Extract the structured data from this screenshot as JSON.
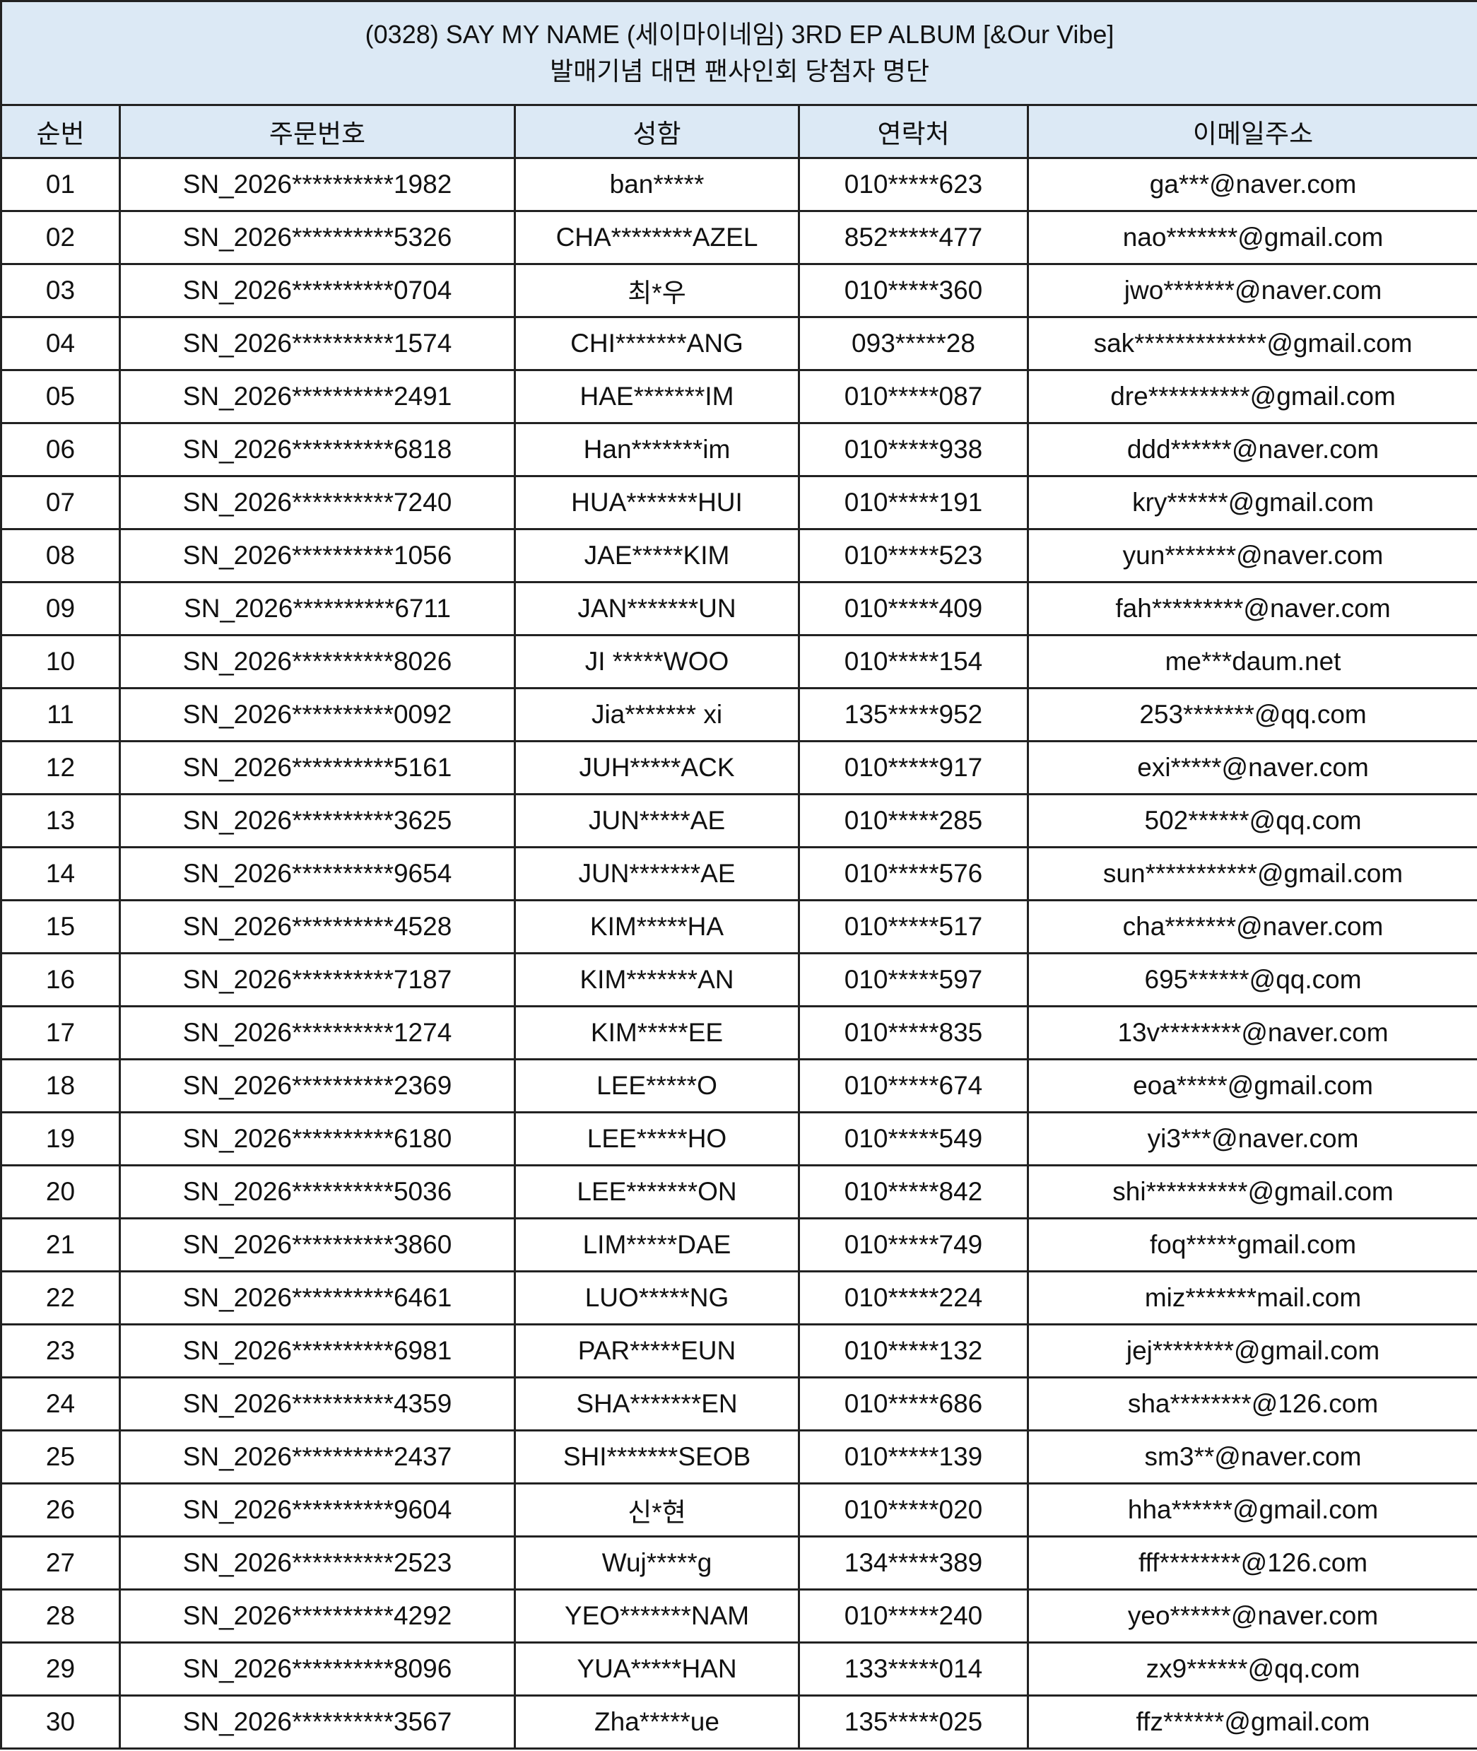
{
  "title": {
    "line1": "(0328) SAY MY NAME (세이마이네임) 3RD EP ALBUM [&Our Vibe]",
    "line2": "발매기념 대면 팬사인회 당첨자 명단"
  },
  "columns": [
    "순번",
    "주문번호",
    "성함",
    "연락처",
    "이메일주소"
  ],
  "colors": {
    "header_bg": "#dce9f5",
    "border": "#222222"
  },
  "rows": [
    [
      "01",
      "SN_2026**********1982",
      "ban*****",
      "010*****623",
      "ga***@naver.com"
    ],
    [
      "02",
      "SN_2026**********5326",
      "CHA********AZEL",
      "852*****477",
      "nao*******@gmail.com"
    ],
    [
      "03",
      "SN_2026**********0704",
      "최*우",
      "010*****360",
      "jwo*******@naver.com"
    ],
    [
      "04",
      "SN_2026**********1574",
      "CHI*******ANG",
      "093*****28",
      "sak*************@gmail.com"
    ],
    [
      "05",
      "SN_2026**********2491",
      "HAE*******IM",
      "010*****087",
      "dre**********@gmail.com"
    ],
    [
      "06",
      "SN_2026**********6818",
      "Han*******im",
      "010*****938",
      "ddd******@naver.com"
    ],
    [
      "07",
      "SN_2026**********7240",
      "HUA*******HUI",
      "010*****191",
      "kry******@gmail.com"
    ],
    [
      "08",
      "SN_2026**********1056",
      "JAE*****KIM",
      "010*****523",
      "yun*******@naver.com"
    ],
    [
      "09",
      "SN_2026**********6711",
      "JAN*******UN",
      "010*****409",
      "fah*********@naver.com"
    ],
    [
      "10",
      "SN_2026**********8026",
      "JI *****WOO",
      "010*****154",
      "me***daum.net"
    ],
    [
      "11",
      "SN_2026**********0092",
      "Jia******* xi",
      "135*****952",
      "253*******@qq.com"
    ],
    [
      "12",
      "SN_2026**********5161",
      "JUH*****ACK",
      "010*****917",
      "exi*****@naver.com"
    ],
    [
      "13",
      "SN_2026**********3625",
      "JUN*****AE",
      "010*****285",
      "502******@qq.com"
    ],
    [
      "14",
      "SN_2026**********9654",
      "JUN*******AE",
      "010*****576",
      "sun***********@gmail.com"
    ],
    [
      "15",
      "SN_2026**********4528",
      "KIM*****HA",
      "010*****517",
      "cha*******@naver.com"
    ],
    [
      "16",
      "SN_2026**********7187",
      "KIM*******AN",
      "010*****597",
      "695******@qq.com"
    ],
    [
      "17",
      "SN_2026**********1274",
      "KIM*****EE",
      "010*****835",
      "13v********@naver.com"
    ],
    [
      "18",
      "SN_2026**********2369",
      "LEE*****O",
      "010*****674",
      "eoa*****@gmail.com"
    ],
    [
      "19",
      "SN_2026**********6180",
      "LEE*****HO",
      "010*****549",
      "yi3***@naver.com"
    ],
    [
      "20",
      "SN_2026**********5036",
      "LEE*******ON",
      "010*****842",
      "shi**********@gmail.com"
    ],
    [
      "21",
      "SN_2026**********3860",
      "LIM*****DAE",
      "010*****749",
      "foq*****gmail.com"
    ],
    [
      "22",
      "SN_2026**********6461",
      "LUO*****NG",
      "010*****224",
      "miz*******mail.com"
    ],
    [
      "23",
      "SN_2026**********6981",
      "PAR*****EUN",
      "010*****132",
      "jej********@gmail.com"
    ],
    [
      "24",
      "SN_2026**********4359",
      "SHA*******EN",
      "010*****686",
      "sha********@126.com"
    ],
    [
      "25",
      "SN_2026**********2437",
      "SHI*******SEOB",
      "010*****139",
      "sm3**@naver.com"
    ],
    [
      "26",
      "SN_2026**********9604",
      "신*현",
      "010*****020",
      "hha******@gmail.com"
    ],
    [
      "27",
      "SN_2026**********2523",
      "Wuj*****g",
      "134*****389",
      "fff********@126.com"
    ],
    [
      "28",
      "SN_2026**********4292",
      "YEO*******NAM",
      "010*****240",
      "yeo******@naver.com"
    ],
    [
      "29",
      "SN_2026**********8096",
      "YUA*****HAN",
      "133*****014",
      "zx9******@qq.com"
    ],
    [
      "30",
      "SN_2026**********3567",
      "Zha*****ue",
      "135*****025",
      "ffz******@gmail.com"
    ]
  ]
}
